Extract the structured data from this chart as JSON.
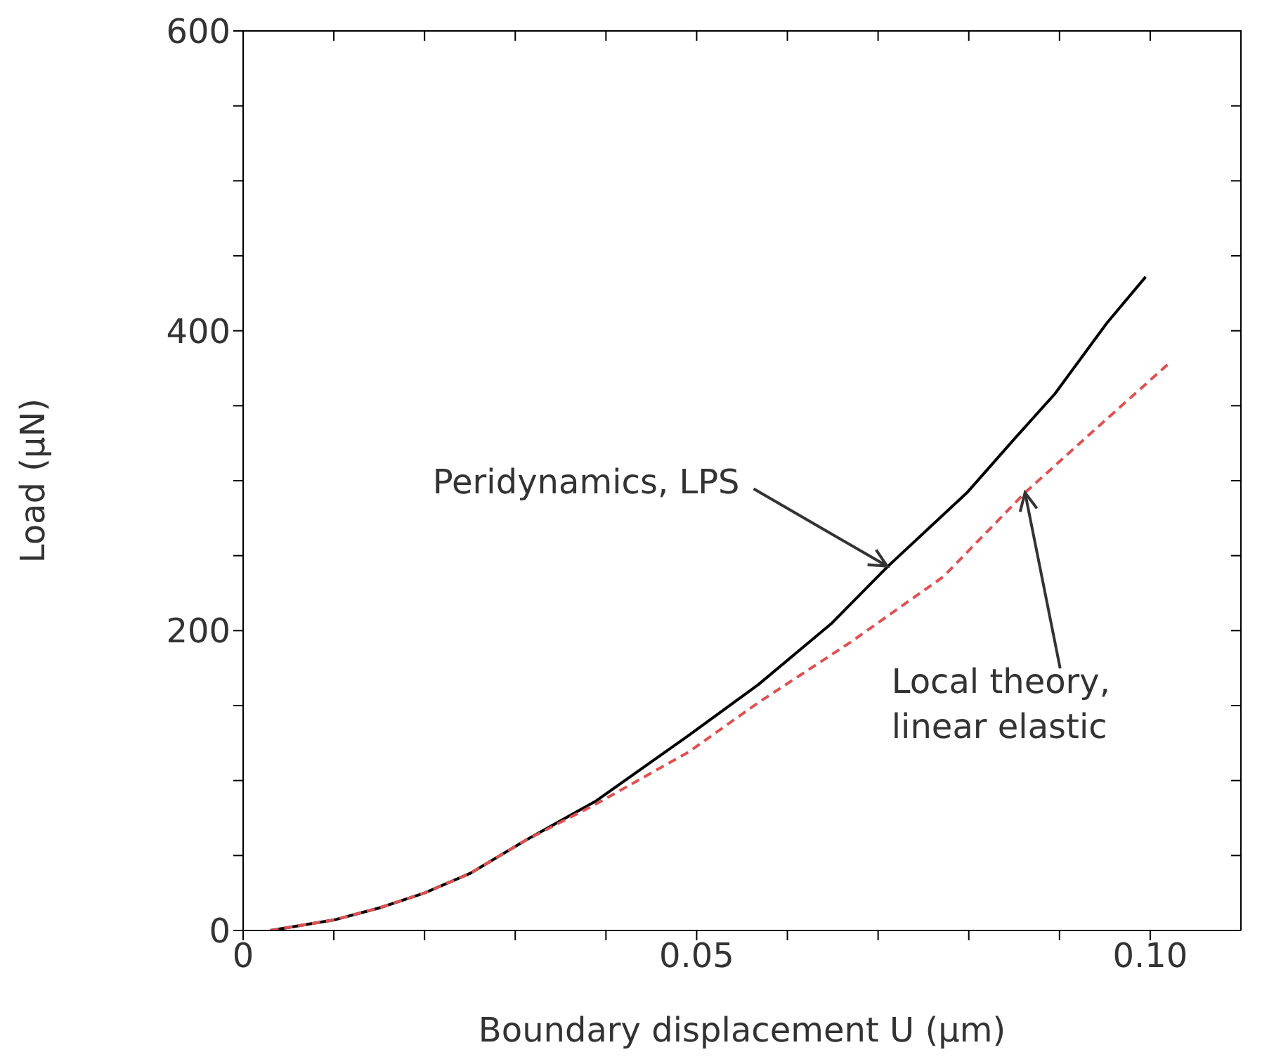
{
  "chart_data": {
    "type": "line",
    "xlabel": "Boundary displacement U (μm)",
    "ylabel": "Load (μN)",
    "xlim": [
      0,
      0.11
    ],
    "xticks": [
      0,
      {
        "value": 0.01,
        "label": null
      },
      {
        "value": 0.02,
        "label": null
      },
      {
        "value": 0.03,
        "label": null
      },
      {
        "value": 0.04,
        "label": null
      },
      0.05,
      {
        "value": 0.06,
        "label": null
      },
      {
        "value": 0.07,
        "label": null
      },
      {
        "value": 0.08,
        "label": null
      },
      {
        "value": 0.09,
        "label": null
      },
      {
        "value": 0.1,
        "label": "0.10"
      }
    ],
    "ylim": [
      0,
      600
    ],
    "yticks": [
      0,
      {
        "value": 50,
        "label": null
      },
      {
        "value": 100,
        "label": null
      },
      {
        "value": 150,
        "label": null
      },
      200,
      {
        "value": 250,
        "label": null
      },
      {
        "value": 300,
        "label": null
      },
      {
        "value": 350,
        "label": null
      },
      400,
      {
        "value": 450,
        "label": null
      },
      {
        "value": 500,
        "label": null
      },
      {
        "value": 550,
        "label": null
      },
      600
    ],
    "marker": "none",
    "series": [
      {
        "color": "#000000",
        "line_style": "solid",
        "x": [
          0.003,
          0.01,
          0.015,
          0.02,
          0.025,
          0.0311,
          0.0388,
          0.0491,
          0.0568,
          0.0649,
          0.0711,
          0.0798,
          0.0849,
          0.0895,
          0.0952,
          0.0995
        ],
        "values": [
          0,
          7,
          15,
          25,
          38,
          60,
          86,
          130,
          164,
          205,
          243,
          292,
          327,
          358,
          405,
          436
        ]
      },
      {
        "color": "#e05050",
        "line_style": "dashed",
        "x": [
          0.003,
          0.01,
          0.015,
          0.02,
          0.025,
          0.0311,
          0.0388,
          0.0491,
          0.0568,
          0.0669,
          0.0772,
          0.0862,
          0.0926,
          0.1022
        ],
        "values": [
          0,
          7,
          15,
          25,
          38,
          60,
          84,
          119,
          152,
          192,
          236,
          292,
          327,
          379
        ]
      }
    ],
    "annotations": [
      {
        "text": "Peridynamics, LPS",
        "x": 0.071,
        "y": 243
      },
      {
        "text": "Local theory, linear elastic",
        "x": 0.0862,
        "y": 292
      }
    ]
  }
}
